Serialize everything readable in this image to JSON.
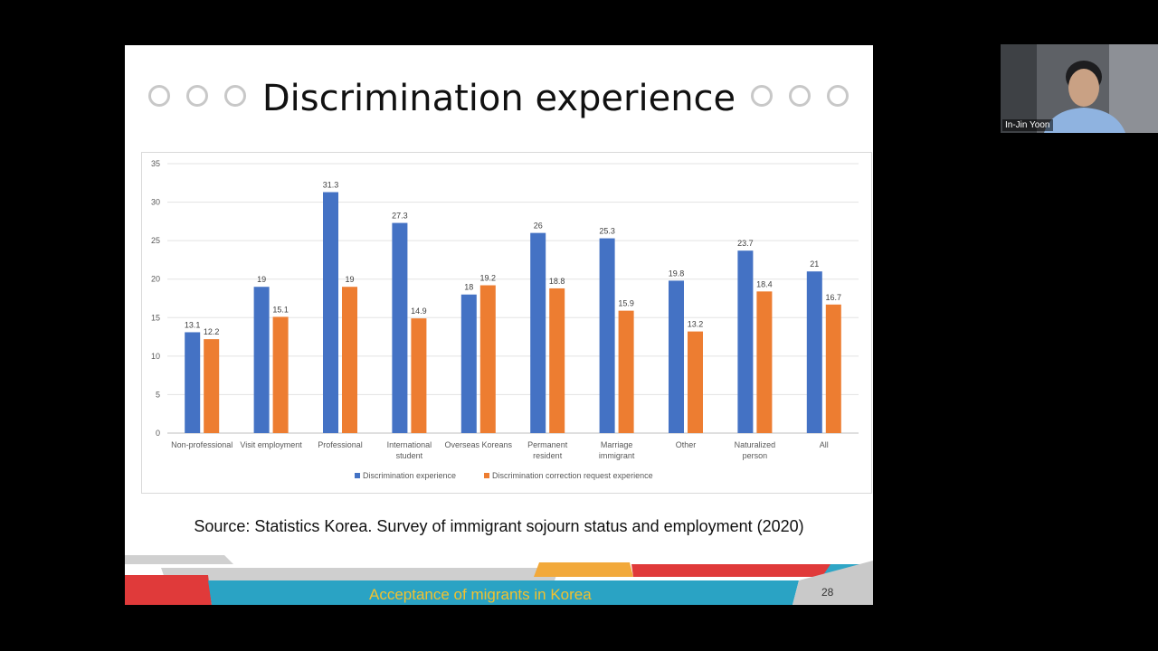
{
  "slide": {
    "title": "Discrimination experience",
    "source": "Source: Statistics Korea. Survey of immigrant sojourn status and employment (2020)",
    "footer_text": "Acceptance of migrants in Korea",
    "page_number": "28"
  },
  "participant": {
    "name": "In-Jin Yoon"
  },
  "colors": {
    "series1": "#4472c4",
    "series2": "#ed7d31"
  },
  "chart_data": {
    "type": "bar",
    "categories": [
      [
        "Non-professional"
      ],
      [
        "Visit employment"
      ],
      [
        "Professional"
      ],
      [
        "International",
        "student"
      ],
      [
        "Overseas Koreans"
      ],
      [
        "Permanent",
        "resident"
      ],
      [
        "Marriage",
        "immigrant"
      ],
      [
        "Other"
      ],
      [
        "Naturalized",
        "person"
      ],
      [
        "All"
      ]
    ],
    "series": [
      {
        "name": "Discrimination experience",
        "values": [
          13.1,
          19,
          31.3,
          27.3,
          18,
          26,
          25.3,
          19.8,
          23.7,
          21
        ]
      },
      {
        "name": "Discrimination correction request experience",
        "values": [
          12.2,
          15.1,
          19,
          14.9,
          19.2,
          18.8,
          15.9,
          13.2,
          18.4,
          16.7
        ]
      }
    ],
    "yticks": [
      0,
      5,
      10,
      15,
      20,
      25,
      30,
      35
    ],
    "ylim": [
      0,
      35
    ],
    "grid": true,
    "legend": "bottom"
  }
}
